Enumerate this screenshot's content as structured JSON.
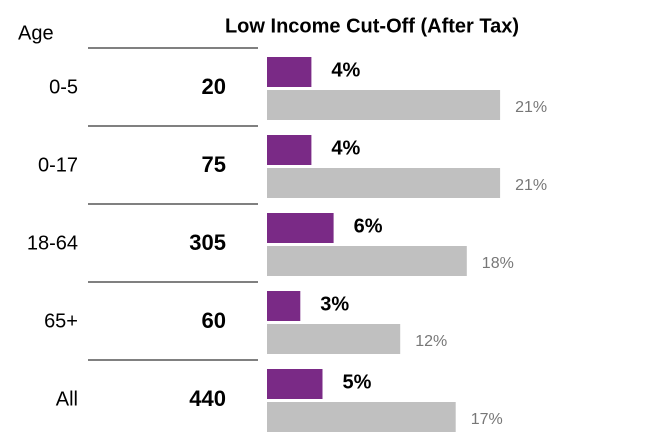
{
  "chart_data": {
    "type": "bar",
    "title": "Low Income Cut-Off (After Tax)",
    "category_label": "Age",
    "categories": [
      "0-5",
      "0-17",
      "18-64",
      "65+",
      "All"
    ],
    "counts": [
      20,
      75,
      305,
      60,
      440
    ],
    "series": [
      {
        "color": "#7a2a86",
        "values": [
          4,
          4,
          6,
          3,
          5
        ],
        "value_labels": [
          "4%",
          "4%",
          "6%",
          "3%",
          "5%"
        ]
      },
      {
        "color": "#c0c0c0",
        "values": [
          21,
          21,
          18,
          12,
          17
        ],
        "value_labels": [
          "21%",
          "21%",
          "18%",
          "12%",
          "17%"
        ]
      }
    ]
  }
}
